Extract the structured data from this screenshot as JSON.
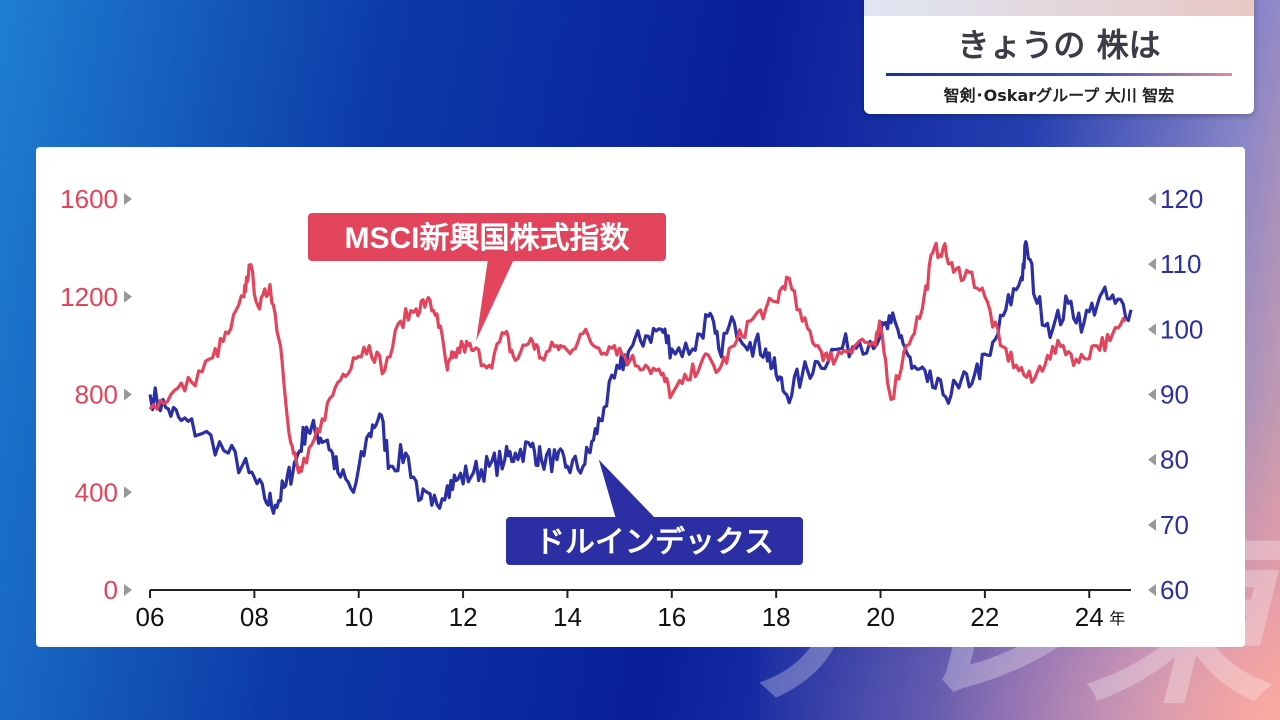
{
  "header": {
    "title": "きょうの 株は",
    "subtitle": "智剣･Oskarグループ 大川 智宏"
  },
  "watermark": "テレ東",
  "colors": {
    "msci": "#e2445c",
    "dollar": "#2b2fa3",
    "axis": "#222222"
  },
  "chart_data": {
    "type": "line",
    "x_ticks": [
      "06",
      "08",
      "10",
      "12",
      "14",
      "16",
      "18",
      "20",
      "22",
      "24"
    ],
    "x_unit": "年",
    "xlim": [
      2006,
      2024.8
    ],
    "y_left": {
      "ticks": [
        "0",
        "1600",
        "1200",
        "800",
        "400"
      ],
      "ylim": [
        0,
        1600
      ]
    },
    "y_right": {
      "ticks": [
        "120",
        "110",
        "100",
        "90",
        "80",
        "70",
        "60"
      ],
      "ylim": [
        60,
        120
      ]
    },
    "series": [
      {
        "name": "MSCI新興国株式指数",
        "axis": "left",
        "x": [
          2006.0,
          2006.4,
          2006.8,
          2007.2,
          2007.5,
          2007.8,
          2007.9,
          2008.1,
          2008.3,
          2008.5,
          2008.7,
          2008.85,
          2009.0,
          2009.3,
          2009.6,
          2009.9,
          2010.2,
          2010.5,
          2010.8,
          2011.1,
          2011.3,
          2011.5,
          2011.7,
          2011.8,
          2012.0,
          2012.2,
          2012.5,
          2012.8,
          2013.0,
          2013.3,
          2013.5,
          2013.8,
          2014.0,
          2014.3,
          2014.6,
          2014.9,
          2015.2,
          2015.5,
          2015.8,
          2016.0,
          2016.3,
          2016.6,
          2016.9,
          2017.2,
          2017.5,
          2017.8,
          2018.0,
          2018.2,
          2018.5,
          2018.8,
          2019.0,
          2019.3,
          2019.6,
          2019.9,
          2020.0,
          2020.2,
          2020.5,
          2020.8,
          2021.0,
          2021.2,
          2021.4,
          2021.7,
          2022.0,
          2022.3,
          2022.6,
          2022.9,
          2023.2,
          2023.5,
          2023.8,
          2024.1,
          2024.4,
          2024.7
        ],
        "values": [
          740,
          800,
          850,
          950,
          1050,
          1200,
          1330,
          1150,
          1250,
          1000,
          600,
          480,
          520,
          700,
          850,
          950,
          1000,
          900,
          1100,
          1150,
          1180,
          1130,
          900,
          950,
          1000,
          980,
          920,
          1050,
          940,
          1030,
          950,
          1000,
          980,
          1050,
          990,
          1000,
          940,
          920,
          880,
          800,
          860,
          950,
          900,
          1000,
          1100,
          1150,
          1180,
          1280,
          1100,
          1000,
          940,
          980,
          1020,
          1000,
          1080,
          780,
          1000,
          1150,
          1380,
          1400,
          1300,
          1300,
          1200,
          1000,
          920,
          850,
          960,
          1000,
          930,
          1000,
          1020,
          1100
        ]
      },
      {
        "name": "ドルインデックス",
        "axis": "right",
        "x": [
          2006.0,
          2006.3,
          2006.6,
          2007.0,
          2007.5,
          2007.9,
          2008.2,
          2008.4,
          2008.6,
          2008.8,
          2009.0,
          2009.2,
          2009.4,
          2009.6,
          2009.9,
          2010.2,
          2010.4,
          2010.6,
          2010.9,
          2011.2,
          2011.4,
          2011.7,
          2011.9,
          2012.2,
          2012.5,
          2012.8,
          2013.0,
          2013.3,
          2013.5,
          2013.8,
          2014.0,
          2014.3,
          2014.5,
          2014.7,
          2015.0,
          2015.2,
          2015.5,
          2015.8,
          2016.0,
          2016.4,
          2016.7,
          2016.9,
          2017.2,
          2017.5,
          2017.8,
          2018.0,
          2018.2,
          2018.5,
          2018.8,
          2019.2,
          2019.6,
          2020.0,
          2020.2,
          2020.4,
          2020.6,
          2020.9,
          2021.2,
          2021.5,
          2021.8,
          2022.1,
          2022.4,
          2022.7,
          2022.8,
          2023.0,
          2023.3,
          2023.6,
          2023.9,
          2024.2,
          2024.5,
          2024.8
        ],
        "values": [
          90,
          88,
          86,
          84,
          81,
          78,
          74,
          73,
          76,
          80,
          85,
          84,
          83,
          78,
          75,
          84,
          87,
          79,
          81,
          74,
          73,
          76,
          77,
          78,
          79,
          80,
          81,
          82,
          80,
          80,
          79,
          79,
          83,
          88,
          94,
          97,
          99,
          100,
          97,
          97,
          102,
          97,
          101,
          98,
          97,
          93,
          90,
          93,
          95,
          97,
          98,
          99,
          101,
          99,
          94,
          92,
          90,
          91,
          93,
          96,
          103,
          108,
          113,
          104,
          100,
          104,
          101,
          105,
          104,
          103
        ]
      }
    ],
    "labels": [
      "MSCI新興国株式指数",
      "ドルインデックス"
    ]
  }
}
